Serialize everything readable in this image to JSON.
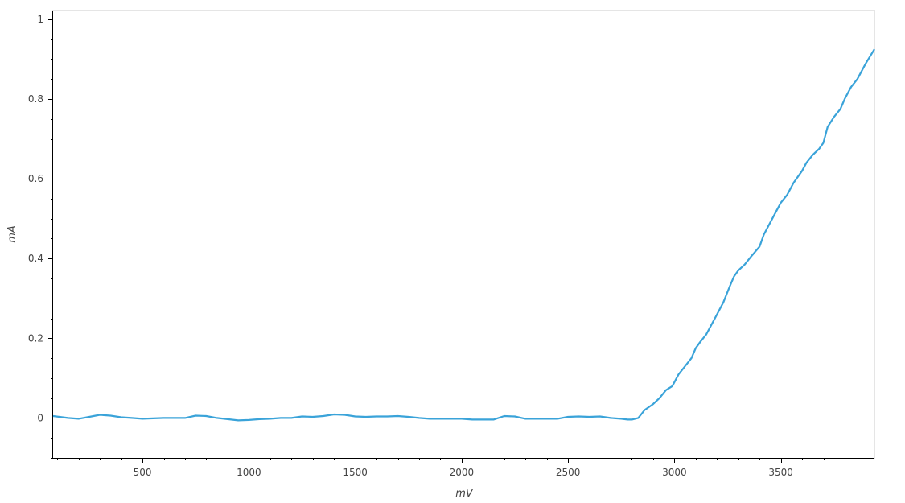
{
  "chart_data": {
    "type": "line",
    "title": "",
    "xlabel": "mV",
    "ylabel": "mA",
    "xlim": [
      80,
      3940
    ],
    "ylim": [
      -0.1,
      1.02
    ],
    "x_ticks": [
      500,
      1000,
      1500,
      2000,
      2500,
      3000,
      3500
    ],
    "x_tick_labels": [
      "500",
      "1000",
      "1500",
      "2000",
      "2500",
      "3000",
      "3500"
    ],
    "y_ticks": [
      0,
      0.2,
      0.4,
      0.6,
      0.8,
      1
    ],
    "y_tick_labels": [
      "0",
      "0.2",
      "0.4",
      "0.6",
      "0.8",
      "1"
    ],
    "grid": false,
    "series": [
      {
        "color": "#3aa3d9",
        "x": [
          80,
          150,
          200,
          250,
          300,
          350,
          400,
          450,
          500,
          600,
          700,
          750,
          800,
          850,
          900,
          950,
          1000,
          1050,
          1100,
          1150,
          1200,
          1250,
          1300,
          1350,
          1400,
          1450,
          1500,
          1550,
          1600,
          1650,
          1700,
          1750,
          1800,
          1850,
          1900,
          1950,
          2000,
          2050,
          2100,
          2150,
          2200,
          2250,
          2300,
          2350,
          2400,
          2450,
          2500,
          2550,
          2600,
          2650,
          2700,
          2750,
          2780,
          2800,
          2830,
          2860,
          2900,
          2930,
          2960,
          2990,
          3000,
          3020,
          3050,
          3080,
          3100,
          3120,
          3150,
          3180,
          3200,
          3230,
          3260,
          3280,
          3300,
          3330,
          3360,
          3400,
          3420,
          3450,
          3480,
          3500,
          3530,
          3560,
          3600,
          3620,
          3650,
          3680,
          3700,
          3720,
          3750,
          3780,
          3800,
          3830,
          3860,
          3900,
          3940
        ],
        "y": [
          0.005,
          0.0,
          -0.002,
          0.003,
          0.008,
          0.006,
          0.002,
          0.0,
          -0.002,
          0.0,
          0.0,
          0.006,
          0.005,
          0.0,
          -0.003,
          -0.006,
          -0.005,
          -0.003,
          -0.002,
          0.0,
          0.0,
          0.004,
          0.003,
          0.005,
          0.009,
          0.008,
          0.004,
          0.003,
          0.004,
          0.004,
          0.005,
          0.003,
          0.0,
          -0.002,
          -0.002,
          -0.002,
          -0.002,
          -0.004,
          -0.004,
          -0.004,
          0.005,
          0.004,
          -0.002,
          -0.002,
          -0.002,
          -0.002,
          0.003,
          0.004,
          0.003,
          0.004,
          0.0,
          -0.002,
          -0.004,
          -0.004,
          0.0,
          0.02,
          0.035,
          0.05,
          0.07,
          0.08,
          0.09,
          0.11,
          0.13,
          0.15,
          0.175,
          0.19,
          0.21,
          0.24,
          0.26,
          0.29,
          0.33,
          0.355,
          0.37,
          0.385,
          0.405,
          0.43,
          0.46,
          0.49,
          0.52,
          0.54,
          0.56,
          0.59,
          0.62,
          0.64,
          0.66,
          0.675,
          0.69,
          0.73,
          0.755,
          0.775,
          0.8,
          0.83,
          0.85,
          0.89,
          0.925
        ]
      }
    ]
  }
}
